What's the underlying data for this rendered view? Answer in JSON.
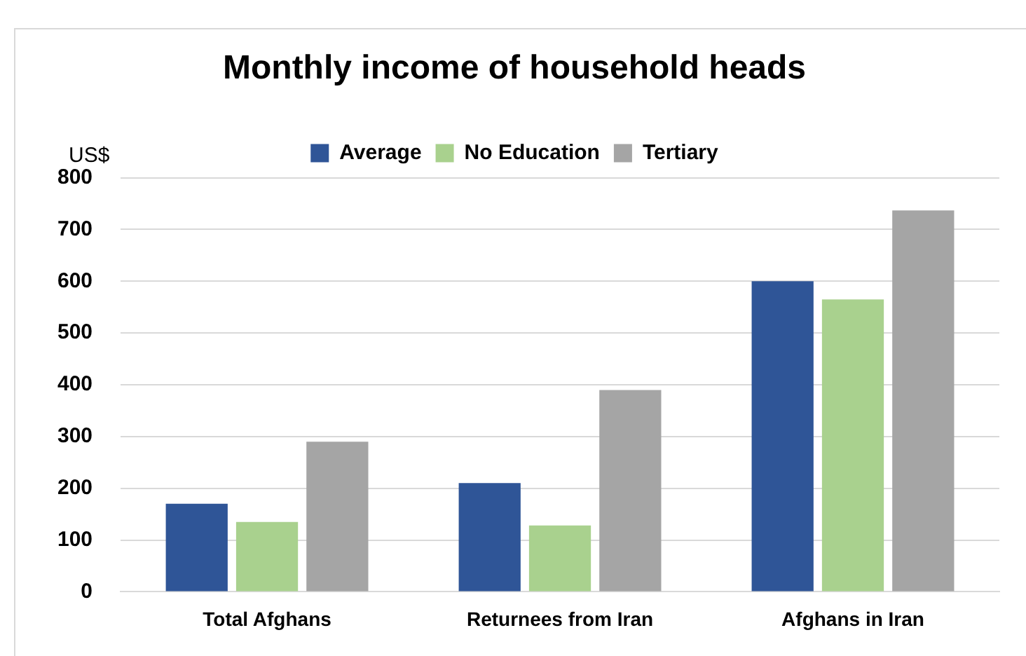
{
  "chart_data": {
    "type": "bar",
    "title": "Monthly income of household heads",
    "ylabel": "US$",
    "categories": [
      "Total Afghans",
      "Returnees from Iran",
      "Afghans in Iran"
    ],
    "series": [
      {
        "name": "Average",
        "color": "#2f5597",
        "values": [
          170,
          210,
          600
        ]
      },
      {
        "name": "No Education",
        "color": "#a9d18e",
        "values": [
          135,
          128,
          565
        ]
      },
      {
        "name": "Tertiary",
        "color": "#a5a5a5",
        "values": [
          290,
          390,
          737
        ]
      }
    ],
    "ylim": [
      0,
      800
    ],
    "yticks": [
      0,
      100,
      200,
      300,
      400,
      500,
      600,
      700,
      800
    ],
    "grid": "y",
    "legend": "top"
  }
}
